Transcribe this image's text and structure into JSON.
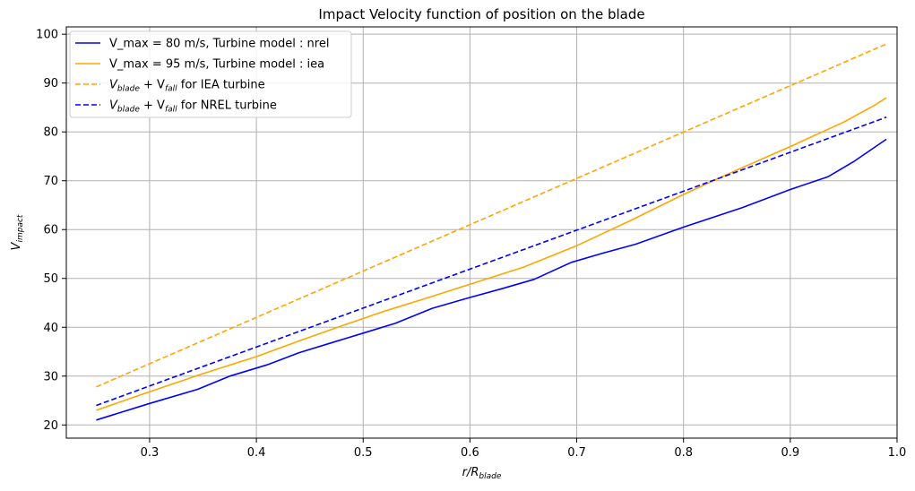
{
  "chart_data": {
    "type": "line",
    "title": "Impact Velocity function of position on the blade",
    "xlabel_main": "r/R",
    "xlabel_sub": "blade",
    "ylabel_main": "V",
    "ylabel_sub": "impact",
    "xlim": [
      0.222,
      1.0
    ],
    "ylim": [
      17.3,
      101.5
    ],
    "xticks": [
      0.3,
      0.4,
      0.5,
      0.6,
      0.7,
      0.8,
      0.9,
      1.0
    ],
    "yticks": [
      20,
      30,
      40,
      50,
      60,
      70,
      80,
      90,
      100
    ],
    "xtick_labels": [
      "0.3",
      "0.4",
      "0.5",
      "0.6",
      "0.7",
      "0.8",
      "0.9",
      "1.0"
    ],
    "ytick_labels": [
      "20",
      "30",
      "40",
      "50",
      "60",
      "70",
      "80",
      "90",
      "100"
    ],
    "grid": true,
    "legend_position": "top-left",
    "series": [
      {
        "legend": "V_max = 80 m/s, Turbine model : nrel",
        "color": "#0000ff",
        "dash": "solid",
        "x": [
          0.25,
          0.3,
          0.345,
          0.375,
          0.41,
          0.44,
          0.47,
          0.5,
          0.53,
          0.565,
          0.6,
          0.63,
          0.66,
          0.695,
          0.725,
          0.755,
          0.8,
          0.855,
          0.9,
          0.935,
          0.96,
          0.99
        ],
        "y": [
          21.0,
          24.4,
          27.3,
          30.0,
          32.3,
          34.8,
          36.8,
          38.8,
          40.8,
          43.9,
          46.1,
          47.9,
          49.8,
          53.3,
          55.2,
          57.0,
          60.5,
          64.5,
          68.2,
          70.8,
          74.0,
          78.5
        ]
      },
      {
        "legend": "V_max = 95 m/s, Turbine model : iea",
        "color": "#ffa500",
        "dash": "solid",
        "x": [
          0.25,
          0.3,
          0.35,
          0.4,
          0.44,
          0.48,
          0.52,
          0.56,
          0.6,
          0.65,
          0.7,
          0.75,
          0.8,
          0.85,
          0.9,
          0.95,
          0.98,
          0.99
        ],
        "y": [
          23.0,
          26.8,
          30.5,
          34.0,
          37.2,
          40.3,
          43.3,
          46.0,
          48.8,
          52.3,
          56.7,
          61.8,
          67.2,
          72.2,
          77.0,
          82.0,
          85.6,
          87.0
        ]
      },
      {
        "legend_prefix_main": "V",
        "legend_prefix_sub1": "blade",
        "legend_plus": " + V",
        "legend_prefix_sub2": "fall",
        "legend_suffix": " for IEA turbine",
        "color": "#ffa500",
        "dash": "dashed",
        "x": [
          0.25,
          0.99
        ],
        "y": [
          27.8,
          98.0
        ]
      },
      {
        "legend_prefix_main": "V",
        "legend_prefix_sub1": "blade",
        "legend_plus": " + V",
        "legend_prefix_sub2": "fall",
        "legend_suffix": " for NREL turbine",
        "color": "#0000ff",
        "dash": "dashed",
        "x": [
          0.25,
          0.99
        ],
        "y": [
          24.0,
          83.0
        ]
      }
    ]
  }
}
